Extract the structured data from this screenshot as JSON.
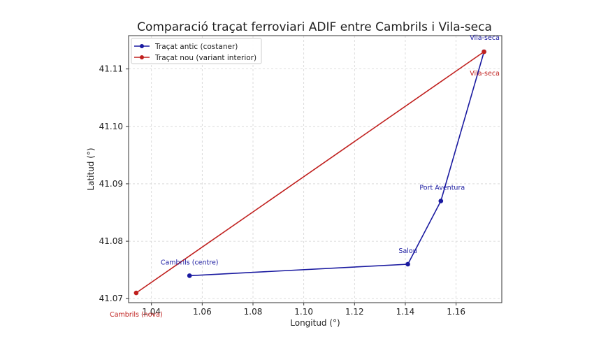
{
  "chart_data": {
    "type": "line",
    "title": "Comparació traçat ferroviari ADIF entre Cambrils i Vila-seca",
    "xlabel": "Longitud (°)",
    "ylabel": "Latitud (°)",
    "xlim": [
      1.031,
      1.178
    ],
    "ylim": [
      41.0693,
      41.1158
    ],
    "xticks": [
      "1.04",
      "1.06",
      "1.08",
      "1.10",
      "1.12",
      "1.14",
      "1.16"
    ],
    "yticks": [
      "41.07",
      "41.08",
      "41.09",
      "41.10",
      "41.11"
    ],
    "grid": true,
    "legend_position": "top-left",
    "series": [
      {
        "name": "Traçat antic (costaner)",
        "color": "#1a1aa0",
        "x": [
          1.055,
          1.141,
          1.154,
          1.171
        ],
        "y": [
          41.074,
          41.076,
          41.087,
          41.113
        ],
        "point_labels": [
          "Cambrils (centre)",
          "Salou",
          "Port Aventura",
          "Vila-seca"
        ]
      },
      {
        "name": "Traçat nou (variant interior)",
        "color": "#c0201e",
        "x": [
          1.034,
          1.171
        ],
        "y": [
          41.071,
          41.113
        ],
        "point_labels": [
          "Cambrils (nova)",
          "Vila-seca"
        ]
      }
    ]
  }
}
